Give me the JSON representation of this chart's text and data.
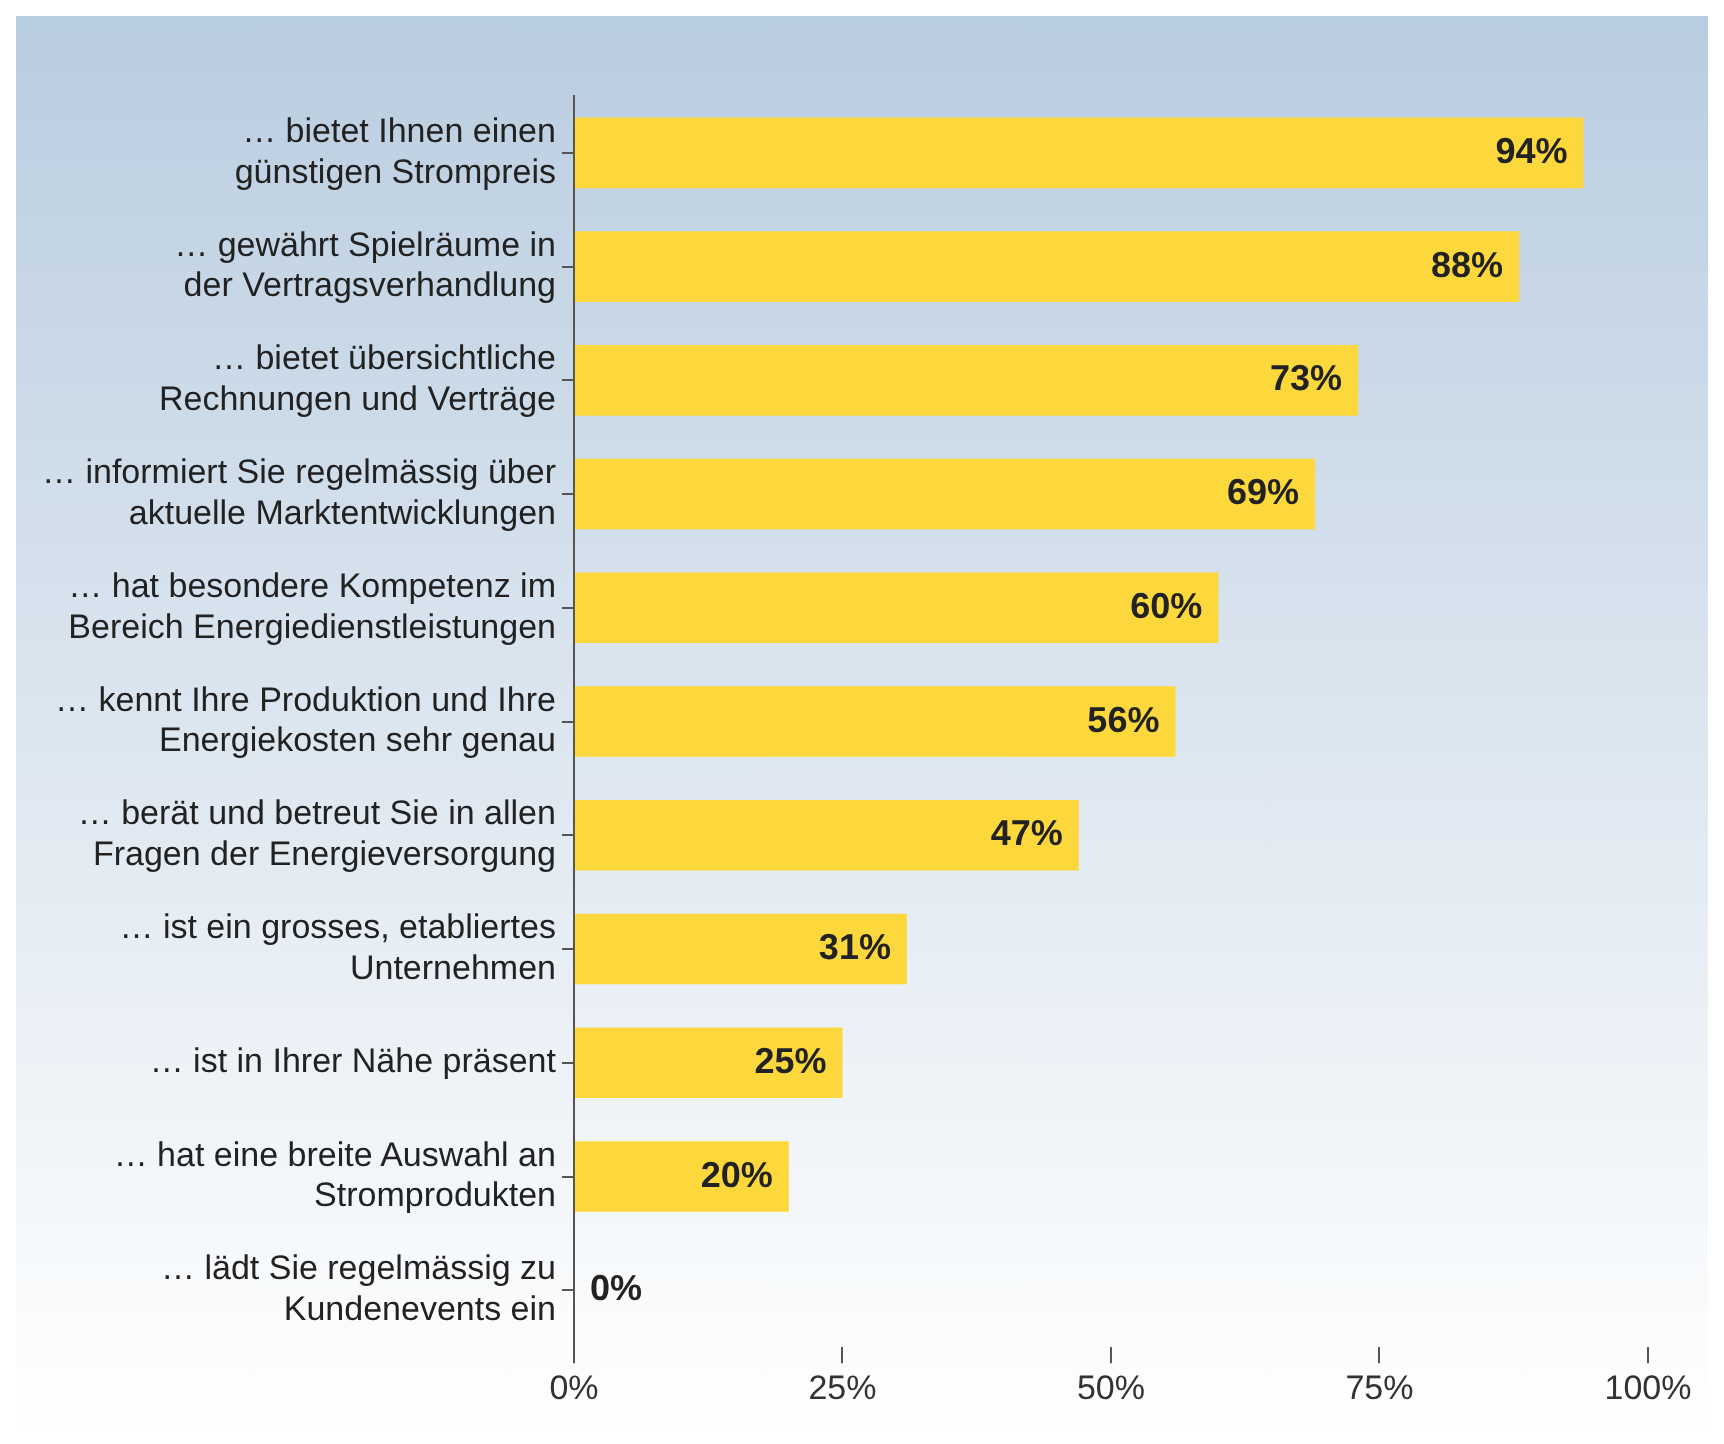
{
  "chart_data": {
    "type": "bar",
    "orientation": "horizontal",
    "categories": [
      "… bietet Ihnen einen\ngünstigen Strompreis",
      "… gewährt Spielräume in\nder Vertragsverhandlung",
      "… bietet übersichtliche\nRechnungen und Verträge",
      "… informiert Sie regelmässig über\naktuelle Marktentwicklungen",
      "… hat besondere Kompetenz im\nBereich Energiedienstleistungen",
      "… kennt Ihre Produktion und Ihre\nEnergiekosten sehr genau",
      "… berät und betreut Sie in allen\nFragen der Energieversorgung",
      "… ist ein grosses, etabliertes\nUnternehmen",
      "… ist in Ihrer Nähe präsent",
      "… hat eine breite Auswahl an\nStromprodukten",
      "… lädt Sie regelmässig zu\nKundenevents ein"
    ],
    "values": [
      94,
      88,
      73,
      69,
      60,
      56,
      47,
      31,
      25,
      20,
      0
    ],
    "value_labels": [
      "94%",
      "88%",
      "73%",
      "69%",
      "60%",
      "56%",
      "47%",
      "31%",
      "25%",
      "20%",
      "0%"
    ],
    "color": "#fcd83c",
    "xlim": [
      0,
      100
    ],
    "xticks": [
      {
        "value": 0,
        "label": "0%"
      },
      {
        "value": 25,
        "label": "25%"
      },
      {
        "value": 50,
        "label": "50%"
      },
      {
        "value": 75,
        "label": "75%"
      },
      {
        "value": 100,
        "label": "100%"
      }
    ],
    "grid": false,
    "legend": false
  }
}
